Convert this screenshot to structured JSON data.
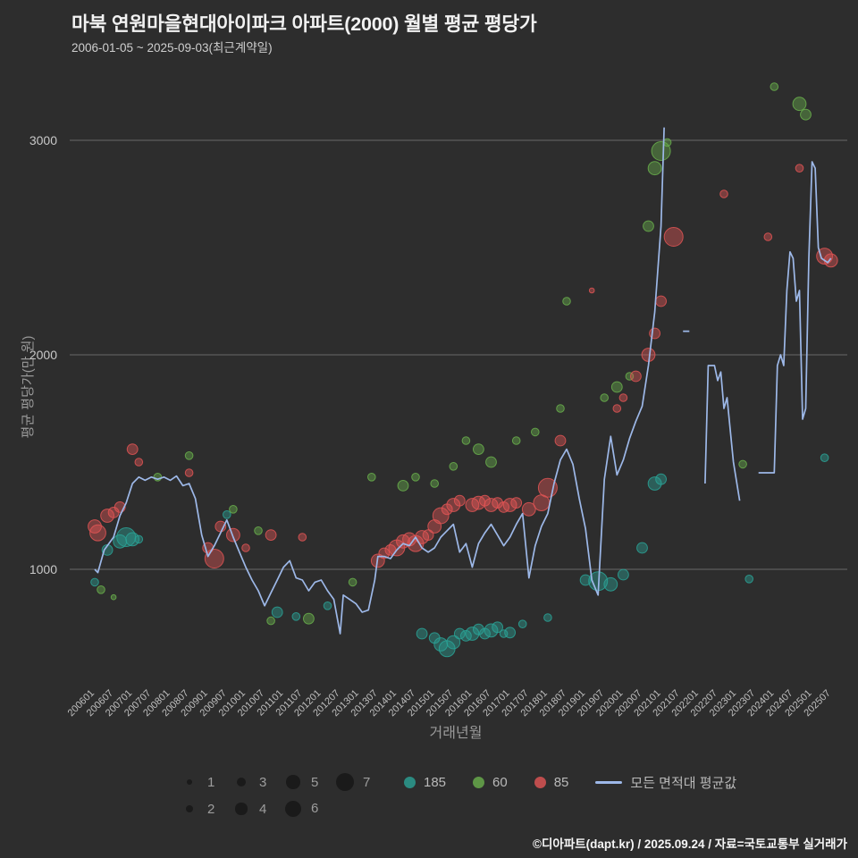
{
  "title": "마북 연원마을현대아이파크 아파트(2000) 월별 평균 평당가",
  "subtitle": "2006-01-05 ~ 2025-09-03(최근계약일)",
  "footer": "©디아파트(dapt.kr) / 2025.09.24 / 자료=국토교통부 실거래가",
  "axes": {
    "x_label": "거래년월",
    "y_label": "평균 평당가(만 원)",
    "y_ticks": [
      1000,
      2000,
      3000
    ],
    "x_ticks": [
      "200601",
      "200607",
      "200701",
      "200707",
      "200801",
      "200807",
      "200901",
      "200907",
      "201001",
      "201007",
      "201101",
      "201107",
      "201201",
      "201207",
      "201301",
      "201307",
      "201401",
      "201407",
      "201501",
      "201507",
      "201601",
      "201607",
      "201701",
      "201707",
      "201801",
      "201807",
      "201901",
      "201907",
      "202001",
      "202007",
      "202101",
      "202107",
      "202201",
      "202207",
      "202301",
      "202307",
      "202401",
      "202407",
      "202501",
      "202507"
    ]
  },
  "legend": {
    "size_rows": [
      [
        1,
        3,
        5,
        7
      ],
      [
        2,
        4,
        6
      ]
    ],
    "series": [
      {
        "label": "185",
        "color": "#2aa396"
      },
      {
        "label": "60",
        "color": "#6ab04c"
      },
      {
        "label": "85",
        "color": "#e25555"
      }
    ],
    "line": {
      "label": "모든 면적대 평균값",
      "color": "#9db8e8"
    }
  },
  "chart_data": {
    "type": "scatter",
    "title": "마북 연원마을현대아이파크 아파트(2000) 월별 평균 평당가",
    "xlabel": "거래년월",
    "ylabel": "평균 평당가(만 원)",
    "ylim": [
      500,
      3300
    ],
    "x_range": [
      "200601",
      "202507"
    ],
    "grid": "horizontal",
    "legend_position": "bottom",
    "series": [
      {
        "name": "185",
        "kind": "bubble",
        "color": "#2aa396",
        "points": [
          [
            "200601",
            940,
            2
          ],
          [
            "200605",
            1090,
            3
          ],
          [
            "200609",
            1130,
            4
          ],
          [
            "200611",
            1150,
            6
          ],
          [
            "200701",
            1140,
            4
          ],
          [
            "200703",
            1140,
            2
          ],
          [
            "200907",
            1255,
            2
          ],
          [
            "201011",
            800,
            3
          ],
          [
            "201105",
            780,
            2
          ],
          [
            "201203",
            830,
            2
          ],
          [
            "201409",
            700,
            3
          ],
          [
            "201501",
            680,
            3
          ],
          [
            "201503",
            650,
            4
          ],
          [
            "201505",
            630,
            5
          ],
          [
            "201507",
            660,
            4
          ],
          [
            "201509",
            700,
            3
          ],
          [
            "201511",
            690,
            3
          ],
          [
            "201601",
            700,
            4
          ],
          [
            "201603",
            720,
            3
          ],
          [
            "201605",
            700,
            3
          ],
          [
            "201607",
            715,
            4
          ],
          [
            "201609",
            730,
            3
          ],
          [
            "201611",
            700,
            2
          ],
          [
            "201701",
            705,
            3
          ],
          [
            "201705",
            745,
            2
          ],
          [
            "201801",
            775,
            2
          ],
          [
            "201901",
            950,
            3
          ],
          [
            "201905",
            945,
            6
          ],
          [
            "201909",
            930,
            4
          ],
          [
            "202001",
            975,
            3
          ],
          [
            "202007",
            1100,
            3
          ],
          [
            "202011",
            1400,
            4
          ],
          [
            "202101",
            1420,
            3
          ],
          [
            "202305",
            955,
            2
          ],
          [
            "202505",
            1520,
            2
          ]
        ]
      },
      {
        "name": "60",
        "kind": "bubble",
        "color": "#6ab04c",
        "points": [
          [
            "200603",
            905,
            2
          ],
          [
            "200607",
            870,
            1
          ],
          [
            "200709",
            1430,
            2
          ],
          [
            "200807",
            1530,
            2
          ],
          [
            "200909",
            1280,
            2
          ],
          [
            "201005",
            1180,
            2
          ],
          [
            "201009",
            760,
            2
          ],
          [
            "201109",
            770,
            3
          ],
          [
            "201211",
            940,
            2
          ],
          [
            "201305",
            1430,
            2
          ],
          [
            "201403",
            1390,
            3
          ],
          [
            "201407",
            1430,
            2
          ],
          [
            "201501",
            1400,
            2
          ],
          [
            "201507",
            1480,
            2
          ],
          [
            "201511",
            1600,
            2
          ],
          [
            "201603",
            1560,
            3
          ],
          [
            "201607",
            1500,
            3
          ],
          [
            "201703",
            1600,
            2
          ],
          [
            "201709",
            1640,
            2
          ],
          [
            "201805",
            1750,
            2
          ],
          [
            "201807",
            2250,
            2
          ],
          [
            "201907",
            1800,
            2
          ],
          [
            "201911",
            1850,
            3
          ],
          [
            "202003",
            1900,
            2
          ],
          [
            "202009",
            2600,
            3
          ],
          [
            "202011",
            2870,
            4
          ],
          [
            "202101",
            2950,
            6
          ],
          [
            "202103",
            2990,
            2
          ],
          [
            "202303",
            1490,
            2
          ],
          [
            "202401",
            3250,
            2
          ],
          [
            "202409",
            3170,
            4
          ],
          [
            "202411",
            3120,
            3
          ]
        ]
      },
      {
        "name": "85",
        "kind": "bubble",
        "color": "#e25555",
        "points": [
          [
            "200601",
            1200,
            4
          ],
          [
            "200602",
            1170,
            5
          ],
          [
            "200605",
            1250,
            4
          ],
          [
            "200607",
            1265,
            3
          ],
          [
            "200609",
            1290,
            3
          ],
          [
            "200701",
            1560,
            3
          ],
          [
            "200703",
            1500,
            2
          ],
          [
            "200807",
            1450,
            2
          ],
          [
            "200901",
            1100,
            3
          ],
          [
            "200903",
            1050,
            6
          ],
          [
            "200905",
            1200,
            3
          ],
          [
            "200909",
            1160,
            4
          ],
          [
            "201001",
            1100,
            2
          ],
          [
            "201009",
            1160,
            3
          ],
          [
            "201107",
            1150,
            2
          ],
          [
            "201307",
            1040,
            4
          ],
          [
            "201309",
            1075,
            3
          ],
          [
            "201311",
            1090,
            3
          ],
          [
            "201401",
            1100,
            5
          ],
          [
            "201403",
            1130,
            4
          ],
          [
            "201405",
            1140,
            4
          ],
          [
            "201407",
            1120,
            5
          ],
          [
            "201409",
            1150,
            4
          ],
          [
            "201411",
            1160,
            3
          ],
          [
            "201501",
            1200,
            4
          ],
          [
            "201503",
            1250,
            5
          ],
          [
            "201505",
            1280,
            3
          ],
          [
            "201507",
            1300,
            4
          ],
          [
            "201509",
            1320,
            3
          ],
          [
            "201601",
            1300,
            4
          ],
          [
            "201603",
            1310,
            4
          ],
          [
            "201605",
            1320,
            3
          ],
          [
            "201607",
            1300,
            4
          ],
          [
            "201609",
            1310,
            3
          ],
          [
            "201611",
            1290,
            3
          ],
          [
            "201701",
            1300,
            4
          ],
          [
            "201703",
            1310,
            3
          ],
          [
            "201707",
            1280,
            4
          ],
          [
            "201711",
            1310,
            5
          ],
          [
            "201801",
            1380,
            6
          ],
          [
            "201805",
            1600,
            3
          ],
          [
            "201903",
            2300,
            1
          ],
          [
            "201911",
            1750,
            2
          ],
          [
            "202001",
            1800,
            2
          ],
          [
            "202005",
            1900,
            3
          ],
          [
            "202009",
            2000,
            4
          ],
          [
            "202011",
            2100,
            3
          ],
          [
            "202101",
            2250,
            3
          ],
          [
            "202105",
            2550,
            6
          ],
          [
            "202209",
            2750,
            2
          ],
          [
            "202311",
            2550,
            2
          ],
          [
            "202409",
            2870,
            2
          ],
          [
            "202505",
            2460,
            5
          ],
          [
            "202507",
            2440,
            4
          ]
        ]
      },
      {
        "name": "모든 면적대 평균값",
        "kind": "line",
        "color": "#9db8e8",
        "points": [
          [
            "200601",
            1000
          ],
          [
            "200602",
            985
          ],
          [
            "200604",
            1090
          ],
          [
            "200607",
            1150
          ],
          [
            "200609",
            1250
          ],
          [
            "200611",
            1310
          ],
          [
            "200701",
            1400
          ],
          [
            "200703",
            1430
          ],
          [
            "200705",
            1415
          ],
          [
            "200707",
            1430
          ],
          [
            "200709",
            1420
          ],
          [
            "200711",
            1430
          ],
          [
            "200801",
            1415
          ],
          [
            "200803",
            1435
          ],
          [
            "200805",
            1390
          ],
          [
            "200807",
            1400
          ],
          [
            "200809",
            1330
          ],
          [
            "200811",
            1160
          ],
          [
            "200901",
            1060
          ],
          [
            "200903",
            1110
          ],
          [
            "200905",
            1170
          ],
          [
            "200907",
            1230
          ],
          [
            "200909",
            1150
          ],
          [
            "200911",
            1080
          ],
          [
            "201001",
            1010
          ],
          [
            "201003",
            950
          ],
          [
            "201005",
            900
          ],
          [
            "201007",
            830
          ],
          [
            "201009",
            890
          ],
          [
            "201011",
            950
          ],
          [
            "201101",
            1010
          ],
          [
            "201103",
            1040
          ],
          [
            "201105",
            960
          ],
          [
            "201107",
            950
          ],
          [
            "201109",
            900
          ],
          [
            "201111",
            940
          ],
          [
            "201201",
            950
          ],
          [
            "201203",
            900
          ],
          [
            "201205",
            860
          ],
          [
            "201207",
            700
          ],
          [
            "201208",
            880
          ],
          [
            "201210",
            860
          ],
          [
            "201212",
            840
          ],
          [
            "201302",
            800
          ],
          [
            "201304",
            810
          ],
          [
            "201306",
            950
          ],
          [
            "201307",
            1060
          ],
          [
            "201309",
            1060
          ],
          [
            "201311",
            1050
          ],
          [
            "201401",
            1090
          ],
          [
            "201403",
            1120
          ],
          [
            "201405",
            1110
          ],
          [
            "201407",
            1150
          ],
          [
            "201409",
            1100
          ],
          [
            "201411",
            1080
          ],
          [
            "201501",
            1100
          ],
          [
            "201503",
            1150
          ],
          [
            "201505",
            1180
          ],
          [
            "201507",
            1210
          ],
          [
            "201509",
            1080
          ],
          [
            "201511",
            1120
          ],
          [
            "201601",
            1010
          ],
          [
            "201603",
            1120
          ],
          [
            "201605",
            1170
          ],
          [
            "201607",
            1210
          ],
          [
            "201609",
            1160
          ],
          [
            "201611",
            1110
          ],
          [
            "201701",
            1150
          ],
          [
            "201703",
            1210
          ],
          [
            "201705",
            1260
          ],
          [
            "201707",
            960
          ],
          [
            "201709",
            1110
          ],
          [
            "201711",
            1200
          ],
          [
            "201801",
            1260
          ],
          [
            "201803",
            1400
          ],
          [
            "201805",
            1510
          ],
          [
            "201807",
            1560
          ],
          [
            "201809",
            1490
          ],
          [
            "201811",
            1330
          ],
          [
            "201901",
            1190
          ],
          [
            "201903",
            950
          ],
          [
            "201905",
            880
          ],
          [
            "201906",
            1150
          ],
          [
            "201907",
            1420
          ],
          [
            "201909",
            1620
          ],
          [
            "201911",
            1440
          ],
          [
            "202001",
            1510
          ],
          [
            "202003",
            1610
          ],
          [
            "202005",
            1690
          ],
          [
            "202007",
            1760
          ],
          [
            "202009",
            1950
          ],
          [
            "202011",
            2200
          ],
          [
            "202101",
            2600
          ],
          [
            "202102",
            3060
          ],
          [
            "202103",
            null
          ],
          [
            "202108",
            2110
          ],
          [
            "202110",
            2110
          ],
          [
            "202111",
            null
          ],
          [
            "202203",
            1400
          ],
          [
            "202204",
            1950
          ],
          [
            "202206",
            1950
          ],
          [
            "202207",
            1880
          ],
          [
            "202208",
            1920
          ],
          [
            "202209",
            1750
          ],
          [
            "202210",
            1800
          ],
          [
            "202212",
            1500
          ],
          [
            "202302",
            1320
          ],
          [
            "202303",
            null
          ],
          [
            "202308",
            1450
          ],
          [
            "202310",
            1450
          ],
          [
            "202312",
            1450
          ],
          [
            "202401",
            1450
          ],
          [
            "202402",
            1950
          ],
          [
            "202403",
            2000
          ],
          [
            "202404",
            1950
          ],
          [
            "202405",
            2300
          ],
          [
            "202406",
            2480
          ],
          [
            "202407",
            2450
          ],
          [
            "202408",
            2250
          ],
          [
            "202409",
            2300
          ],
          [
            "202410",
            1700
          ],
          [
            "202411",
            1750
          ],
          [
            "202412",
            2450
          ],
          [
            "202501",
            2900
          ],
          [
            "202502",
            2870
          ],
          [
            "202503",
            2500
          ],
          [
            "202504",
            2450
          ],
          [
            "202506",
            2430
          ],
          [
            "202507",
            2450
          ]
        ]
      }
    ]
  }
}
